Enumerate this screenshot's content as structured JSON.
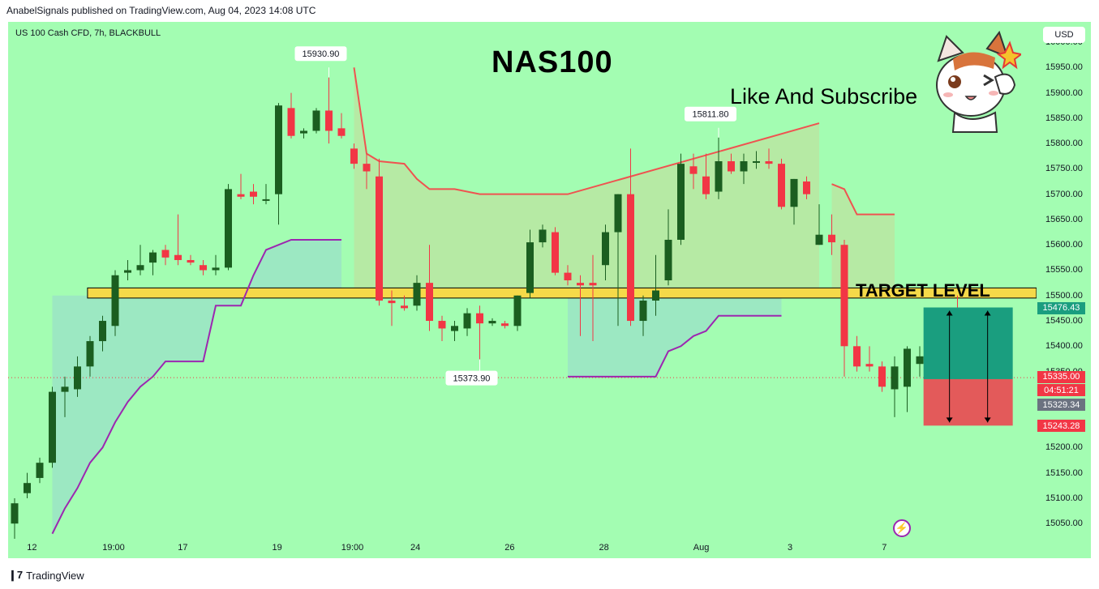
{
  "header": {
    "published": "AnabelSignals published on TradingView.com, Aug 04, 2023 14:08 UTC"
  },
  "symbol": "US 100 Cash CFD, 7h, BLACKBULL",
  "currency": "USD",
  "title": "NAS100",
  "subscribe_text": "Like And Subscribe",
  "target_text": "TARGET LEVEL",
  "branding": "TradingView",
  "colors": {
    "background": "#a3fdb2",
    "up": "#1b5e20",
    "down": "#f23645",
    "support_band": "#f5d949",
    "target_zone": "#1a9e7f",
    "stop_zone": "#e35a5a",
    "upper_line": "#ef5350",
    "lower_line": "#9c27b0"
  },
  "icons": [
    "bolt-icon",
    "cat-sticker",
    "tradingview-logo"
  ],
  "chart_data": {
    "type": "candlestick",
    "ylim": [
      15020,
      16040
    ],
    "price_ticks": [
      "16000.00",
      "15950.00",
      "15900.00",
      "15850.00",
      "15800.00",
      "15750.00",
      "15700.00",
      "15650.00",
      "15600.00",
      "15550.00",
      "15500.00",
      "15450.00",
      "15400.00",
      "15350.00",
      "15200.00",
      "15150.00",
      "15100.00",
      "15050.00"
    ],
    "time_ticks": [
      {
        "label": "12",
        "i": 1.5
      },
      {
        "label": "19:00",
        "i": 7.5
      },
      {
        "label": "17",
        "i": 13.5
      },
      {
        "label": "19",
        "i": 21
      },
      {
        "label": "19:00",
        "i": 26.5
      },
      {
        "label": "24",
        "i": 32
      },
      {
        "label": "26",
        "i": 39.5
      },
      {
        "label": "28",
        "i": 47
      },
      {
        "label": "Aug",
        "i": 54.5
      },
      {
        "label": "3",
        "i": 62
      },
      {
        "label": "7",
        "i": 69.5
      }
    ],
    "candles": [
      {
        "o": 15050,
        "h": 15100,
        "l": 15020,
        "c": 15090
      },
      {
        "o": 15110,
        "h": 15150,
        "l": 15100,
        "c": 15130
      },
      {
        "o": 15140,
        "h": 15180,
        "l": 15130,
        "c": 15170
      },
      {
        "o": 15170,
        "h": 15320,
        "l": 15160,
        "c": 15310
      },
      {
        "o": 15310,
        "h": 15340,
        "l": 15260,
        "c": 15320
      },
      {
        "o": 15315,
        "h": 15380,
        "l": 15300,
        "c": 15360
      },
      {
        "o": 15360,
        "h": 15420,
        "l": 15340,
        "c": 15410
      },
      {
        "o": 15410,
        "h": 15460,
        "l": 15390,
        "c": 15450
      },
      {
        "o": 15440,
        "h": 15550,
        "l": 15420,
        "c": 15540
      },
      {
        "o": 15545,
        "h": 15570,
        "l": 15530,
        "c": 15550
      },
      {
        "o": 15550,
        "h": 15600,
        "l": 15540,
        "c": 15560
      },
      {
        "o": 15565,
        "h": 15590,
        "l": 15540,
        "c": 15585
      },
      {
        "o": 15590,
        "h": 15600,
        "l": 15560,
        "c": 15575
      },
      {
        "o": 15580,
        "h": 15660,
        "l": 15560,
        "c": 15570
      },
      {
        "o": 15570,
        "h": 15580,
        "l": 15560,
        "c": 15565
      },
      {
        "o": 15560,
        "h": 15570,
        "l": 15540,
        "c": 15550
      },
      {
        "o": 15550,
        "h": 15580,
        "l": 15540,
        "c": 15555
      },
      {
        "o": 15555,
        "h": 15720,
        "l": 15550,
        "c": 15710
      },
      {
        "o": 15700,
        "h": 15740,
        "l": 15690,
        "c": 15695
      },
      {
        "o": 15705,
        "h": 15720,
        "l": 15680,
        "c": 15695
      },
      {
        "o": 15690,
        "h": 15720,
        "l": 15680,
        "c": 15690
      },
      {
        "o": 15700,
        "h": 15880,
        "l": 15640,
        "c": 15875
      },
      {
        "o": 15870,
        "h": 15900,
        "l": 15810,
        "c": 15815
      },
      {
        "o": 15820,
        "h": 15830,
        "l": 15810,
        "c": 15825
      },
      {
        "o": 15825,
        "h": 15870,
        "l": 15820,
        "c": 15865
      },
      {
        "o": 15865,
        "h": 15930,
        "l": 15800,
        "c": 15825
      },
      {
        "o": 15830,
        "h": 15860,
        "l": 15810,
        "c": 15815
      },
      {
        "o": 15790,
        "h": 15800,
        "l": 15750,
        "c": 15760
      },
      {
        "o": 15760,
        "h": 15780,
        "l": 15710,
        "c": 15745
      },
      {
        "o": 15735,
        "h": 15770,
        "l": 15480,
        "c": 15490
      },
      {
        "o": 15490,
        "h": 15510,
        "l": 15440,
        "c": 15485
      },
      {
        "o": 15480,
        "h": 15500,
        "l": 15470,
        "c": 15475
      },
      {
        "o": 15480,
        "h": 15540,
        "l": 15470,
        "c": 15525
      },
      {
        "o": 15525,
        "h": 15600,
        "l": 15430,
        "c": 15450
      },
      {
        "o": 15450,
        "h": 15460,
        "l": 15410,
        "c": 15435
      },
      {
        "o": 15430,
        "h": 15450,
        "l": 15410,
        "c": 15440
      },
      {
        "o": 15435,
        "h": 15475,
        "l": 15420,
        "c": 15465
      },
      {
        "o": 15465,
        "h": 15480,
        "l": 15374,
        "c": 15445
      },
      {
        "o": 15445,
        "h": 15455,
        "l": 15440,
        "c": 15450
      },
      {
        "o": 15445,
        "h": 15450,
        "l": 15435,
        "c": 15440
      },
      {
        "o": 15440,
        "h": 15500,
        "l": 15430,
        "c": 15500
      },
      {
        "o": 15505,
        "h": 15630,
        "l": 15495,
        "c": 15605
      },
      {
        "o": 15605,
        "h": 15640,
        "l": 15595,
        "c": 15630
      },
      {
        "o": 15625,
        "h": 15635,
        "l": 15540,
        "c": 15545
      },
      {
        "o": 15545,
        "h": 15560,
        "l": 15520,
        "c": 15530
      },
      {
        "o": 15525,
        "h": 15540,
        "l": 15420,
        "c": 15520
      },
      {
        "o": 15525,
        "h": 15580,
        "l": 15410,
        "c": 15520
      },
      {
        "o": 15560,
        "h": 15640,
        "l": 15530,
        "c": 15625
      },
      {
        "o": 15625,
        "h": 15700,
        "l": 15440,
        "c": 15700
      },
      {
        "o": 15700,
        "h": 15790,
        "l": 15440,
        "c": 15450
      },
      {
        "o": 15450,
        "h": 15500,
        "l": 15420,
        "c": 15490
      },
      {
        "o": 15490,
        "h": 15580,
        "l": 15460,
        "c": 15510
      },
      {
        "o": 15530,
        "h": 15670,
        "l": 15520,
        "c": 15610
      },
      {
        "o": 15610,
        "h": 15780,
        "l": 15600,
        "c": 15760
      },
      {
        "o": 15755,
        "h": 15780,
        "l": 15710,
        "c": 15740
      },
      {
        "o": 15735,
        "h": 15780,
        "l": 15690,
        "c": 15700
      },
      {
        "o": 15705,
        "h": 15812,
        "l": 15690,
        "c": 15765
      },
      {
        "o": 15765,
        "h": 15780,
        "l": 15740,
        "c": 15745
      },
      {
        "o": 15745,
        "h": 15780,
        "l": 15720,
        "c": 15765
      },
      {
        "o": 15765,
        "h": 15785,
        "l": 15750,
        "c": 15765
      },
      {
        "o": 15765,
        "h": 15790,
        "l": 15750,
        "c": 15760
      },
      {
        "o": 15760,
        "h": 15770,
        "l": 15670,
        "c": 15675
      },
      {
        "o": 15675,
        "h": 15730,
        "l": 15640,
        "c": 15730
      },
      {
        "o": 15725,
        "h": 15735,
        "l": 15690,
        "c": 15700
      },
      {
        "o": 15600,
        "h": 15680,
        "l": 15600,
        "c": 15620
      },
      {
        "o": 15620,
        "h": 15660,
        "l": 15580,
        "c": 15605
      },
      {
        "o": 15600,
        "h": 15610,
        "l": 15340,
        "c": 15400
      },
      {
        "o": 15400,
        "h": 15420,
        "l": 15350,
        "c": 15360
      },
      {
        "o": 15365,
        "h": 15400,
        "l": 15350,
        "c": 15360
      },
      {
        "o": 15360,
        "h": 15370,
        "l": 15310,
        "c": 15320
      },
      {
        "o": 15315,
        "h": 15380,
        "l": 15260,
        "c": 15360
      },
      {
        "o": 15320,
        "h": 15400,
        "l": 15270,
        "c": 15395
      },
      {
        "o": 15365,
        "h": 15400,
        "l": 15340,
        "c": 15380
      },
      {
        "o": 15360,
        "h": 15450,
        "l": 15350,
        "c": 15430
      },
      {
        "o": 15430,
        "h": 15460,
        "l": 15340,
        "c": 15370
      },
      {
        "o": 15365,
        "h": 15500,
        "l": 15335,
        "c": 15335
      }
    ],
    "upper_line": [
      [
        27,
        15950
      ],
      [
        28,
        15780
      ],
      [
        29,
        15765
      ],
      [
        31,
        15760
      ],
      [
        32,
        15730
      ],
      [
        33,
        15710
      ],
      [
        35,
        15710
      ],
      [
        37,
        15700
      ],
      [
        44,
        15700
      ],
      [
        64,
        15840
      ],
      [
        65,
        15720
      ],
      [
        66,
        15710
      ],
      [
        67,
        15660
      ],
      [
        70,
        15660
      ]
    ],
    "lower_line": [
      [
        3,
        15030
      ],
      [
        4,
        15080
      ],
      [
        5,
        15120
      ],
      [
        6,
        15170
      ],
      [
        7,
        15200
      ],
      [
        8,
        15250
      ],
      [
        9,
        15290
      ],
      [
        10,
        15320
      ],
      [
        11,
        15340
      ],
      [
        12,
        15370
      ],
      [
        15,
        15370
      ],
      [
        16,
        15480
      ],
      [
        18,
        15480
      ],
      [
        19,
        15540
      ],
      [
        20,
        15590
      ],
      [
        21,
        15600
      ],
      [
        22,
        15610
      ],
      [
        26,
        15610
      ],
      [
        44,
        15340
      ],
      [
        51,
        15340
      ],
      [
        52,
        15390
      ],
      [
        53,
        15400
      ],
      [
        54,
        15420
      ],
      [
        55,
        15430
      ],
      [
        56,
        15460
      ],
      [
        61,
        15460
      ]
    ],
    "high_labels": [
      {
        "label": "15930.90",
        "i": 25,
        "price": 15930.9
      },
      {
        "label": "15811.80",
        "i": 56,
        "price": 15811.8
      }
    ],
    "low_labels": [
      {
        "label": "15373.90",
        "i": 37,
        "price": 15373.9
      }
    ],
    "support_band": [
      15495,
      15515
    ],
    "target_zone": [
      15335,
      15476.43
    ],
    "stop_zone": [
      15243.28,
      15335
    ],
    "price_labels": [
      {
        "text": "15476.43",
        "price": 15476.43,
        "color": "#1a9e7f"
      },
      {
        "text": "15335.00",
        "price": 15340,
        "color": "#f23645"
      },
      {
        "text": "04:51:21",
        "price": 15314,
        "color": "#f23645"
      },
      {
        "text": "15329.34",
        "price": 15285,
        "color": "#6b7280"
      },
      {
        "text": "15243.28",
        "price": 15243.28,
        "color": "#f23645"
      }
    ]
  }
}
